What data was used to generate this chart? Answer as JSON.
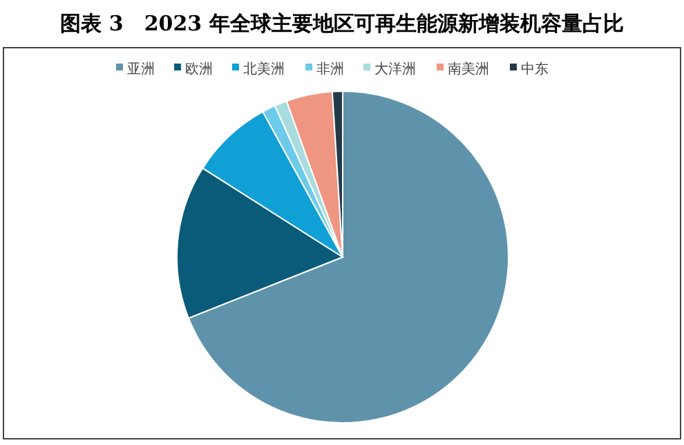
{
  "chart_data": {
    "type": "pie",
    "title": "图表 3　2023 年全球主要地区可再生能源新增装机容量占比",
    "categories": [
      "亚洲",
      "欧洲",
      "北美洲",
      "非洲",
      "大洋洲",
      "南美洲",
      "中东"
    ],
    "values": [
      69,
      15,
      8,
      1.3,
      1.2,
      4.5,
      1
    ],
    "colors": [
      "#5e93ab",
      "#0a5a7a",
      "#10a0d6",
      "#6ccbeb",
      "#a8dcdf",
      "#ee9682",
      "#24394a"
    ],
    "legend": "top"
  }
}
